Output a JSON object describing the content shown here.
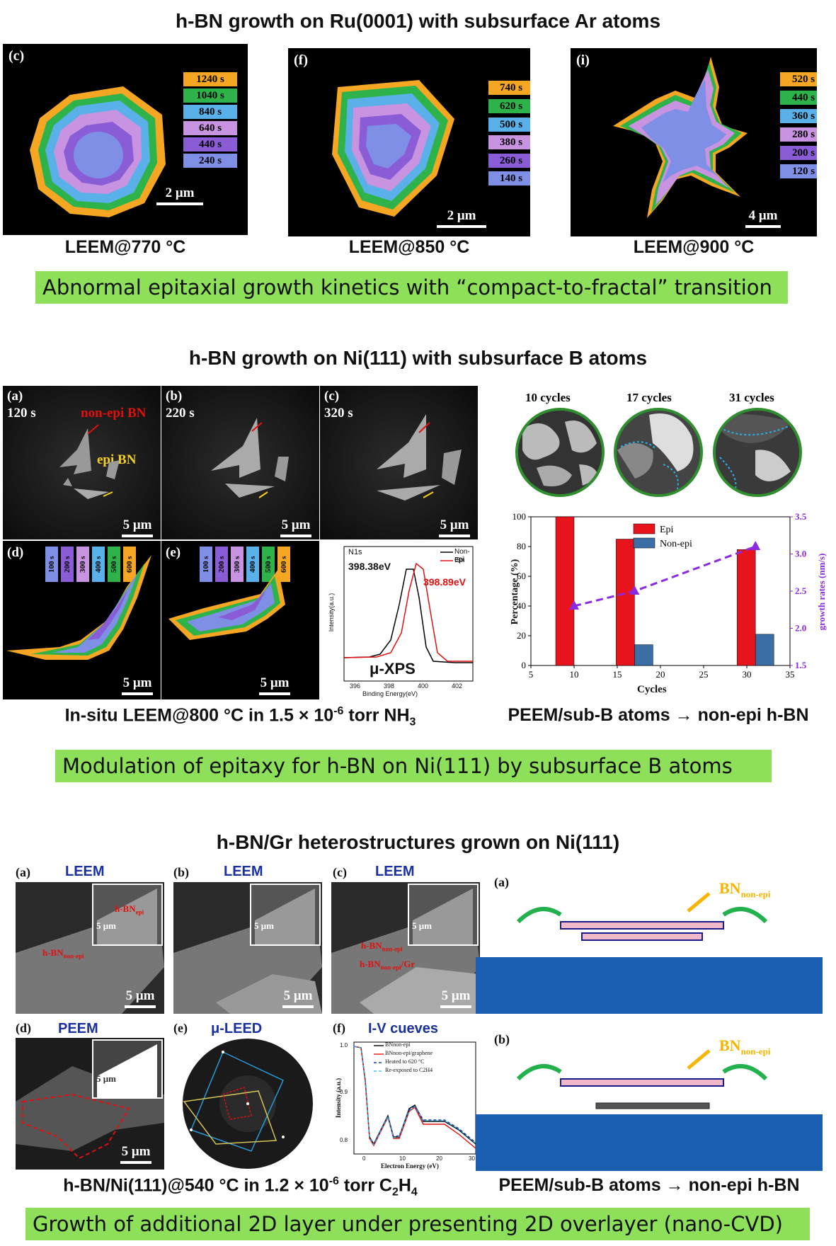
{
  "section1": {
    "title": "h-BN growth on Ru(0001) with subsurface Ar atoms",
    "panels": [
      {
        "label": "(c)",
        "legend": [
          "1240 s",
          "1040 s",
          "840 s",
          "640 s",
          "440 s",
          "240 s"
        ],
        "scale": "2 μm",
        "caption": "LEEM@770 °C"
      },
      {
        "label": "(f)",
        "legend": [
          "740 s",
          "620 s",
          "500 s",
          "380 s",
          "260 s",
          "140 s"
        ],
        "scale": "2 μm",
        "caption": "LEEM@850 °C"
      },
      {
        "label": "(i)",
        "legend": [
          "520 s",
          "440 s",
          "360 s",
          "280 s",
          "200 s",
          "120 s"
        ],
        "scale": "4 μm",
        "caption": "LEEM@900 °C"
      }
    ],
    "legend_colors": [
      "#f5a623",
      "#2db34a",
      "#5ab0e8",
      "#c893e0",
      "#8a5cd6",
      "#7f8fe6"
    ],
    "summary": "Abnormal epitaxial growth kinetics with “compact-to-fractal” transition"
  },
  "section2": {
    "title": "h-BN growth on Ni(111) with subsurface B atoms",
    "top_panels": [
      {
        "label": "(a)",
        "time": "120 s",
        "scale": "5 μm"
      },
      {
        "label": "(b)",
        "time": "220 s",
        "scale": "5 μm"
      },
      {
        "label": "(c)",
        "time": "320 s",
        "scale": "5 μm"
      }
    ],
    "nonepi_label": "non-epi BN",
    "epi_label": "epi BN",
    "bottom_panels": [
      {
        "label": "(d)",
        "scale": "5 μm"
      },
      {
        "label": "(e)",
        "scale": "5 μm"
      }
    ],
    "time_tags": [
      "100 s",
      "200 s",
      "300 s",
      "400 s",
      "500 s",
      "600 s"
    ],
    "time_tag_colors": [
      "#7f8fe6",
      "#8a5cd6",
      "#c893e0",
      "#5ab0e8",
      "#2db34a",
      "#f5a623"
    ],
    "xps": {
      "title": "N1s",
      "legend": [
        "Non-epi",
        "Epi"
      ],
      "peak1": "398.38eV",
      "peak2": "398.89eV",
      "ylabel": "Intensity(a.u.)",
      "xlabel": "Binding Energy(eV)",
      "xticks": [
        "396",
        "398",
        "400",
        "402"
      ],
      "big_label": "μ-XPS"
    },
    "caption_left": "In-situ LEEM@800 °C in 1.5 × 10",
    "caption_left_exp": "-6",
    "caption_left_tail": " torr NH",
    "caption_left_sub": "3",
    "circles": [
      "10 cycles",
      "17 cycles",
      "31 cycles"
    ],
    "caption_right": "PEEM/sub-B atoms → non-epi h-BN",
    "summary": "Modulation of epitaxy for h-BN on Ni(111) by subsurface B atoms"
  },
  "chart_data": {
    "type": "bar",
    "x": [
      10,
      17,
      31
    ],
    "xlabel": "Cycles",
    "ylabel": "Percentage (%)",
    "y2label": "growth rates (nm/s)",
    "xlim": [
      5,
      35
    ],
    "ylim": [
      0,
      100
    ],
    "y2lim": [
      1.5,
      3.5
    ],
    "xticks": [
      "5",
      "10",
      "15",
      "20",
      "25",
      "30",
      "35"
    ],
    "yticks": [
      "0",
      "20",
      "40",
      "60",
      "80",
      "100"
    ],
    "y2ticks": [
      "1.5",
      "2.0",
      "2.5",
      "3.0",
      "3.5"
    ],
    "series": [
      {
        "name": "Epi",
        "values": [
          100,
          85,
          78
        ],
        "color": "#e8141c"
      },
      {
        "name": "Non-epi",
        "values": [
          0,
          14,
          21
        ],
        "color": "#3a6ea5"
      },
      {
        "name": "",
        "values": [
          2.3,
          2.5,
          3.1
        ],
        "color": "#8a2be2",
        "axis": "right",
        "kind": "line"
      }
    ]
  },
  "section3": {
    "title": "h-BN/Gr heterostructures grown on Ni(111)",
    "panels": [
      {
        "label": "(a)",
        "mode": "LEEM",
        "scale": "5 μm",
        "inset_scale": "5 μm"
      },
      {
        "label": "(b)",
        "mode": "LEEM",
        "scale": "5 μm",
        "inset_scale": "5 μm"
      },
      {
        "label": "(c)",
        "mode": "LEEM",
        "scale": "5 μm",
        "inset_scale": "5 μm"
      },
      {
        "label": "(d)",
        "mode": "PEEM",
        "scale": "5 μm",
        "inset_scale": "5 μm"
      },
      {
        "label": "(e)",
        "mode": "μ-LEED"
      },
      {
        "label": "(f)",
        "mode": "I-V cueves"
      }
    ],
    "hbn_epi": "h-BN",
    "hbn_epi_sub": "epi",
    "hbn_nonepi": "h-BN",
    "hbn_nonepi_sub": "non-epi",
    "hbn_gr_tail": "/Gr",
    "iv": {
      "legend": [
        "BNnon-epi",
        "BNnon-epi/graphene",
        "Heated to 620 °C",
        "Re-exposed to C2H4"
      ],
      "ylabel": "Intensity (a.u.)",
      "xlabel": "Electron Energy (eV)",
      "yticks": [
        "0.8",
        "0.9",
        "1.0"
      ],
      "xticks": [
        "0",
        "10",
        "20",
        "30"
      ]
    },
    "schematic": {
      "a": "(a)",
      "b": "(b)",
      "bn": "BN",
      "bn_sub": "non-epi"
    },
    "caption_left": "h-BN/Ni(111)@540 °C in 1.2 × 10",
    "caption_left_exp": "-6",
    "caption_left_tail": " torr C",
    "caption_left_sub": "2",
    "caption_left_h": "H",
    "caption_left_sub2": "4",
    "caption_right": "PEEM/sub-B atoms → non-epi h-BN",
    "summary": "Growth of additional 2D layer under presenting 2D overlayer (nano-CVD)"
  }
}
